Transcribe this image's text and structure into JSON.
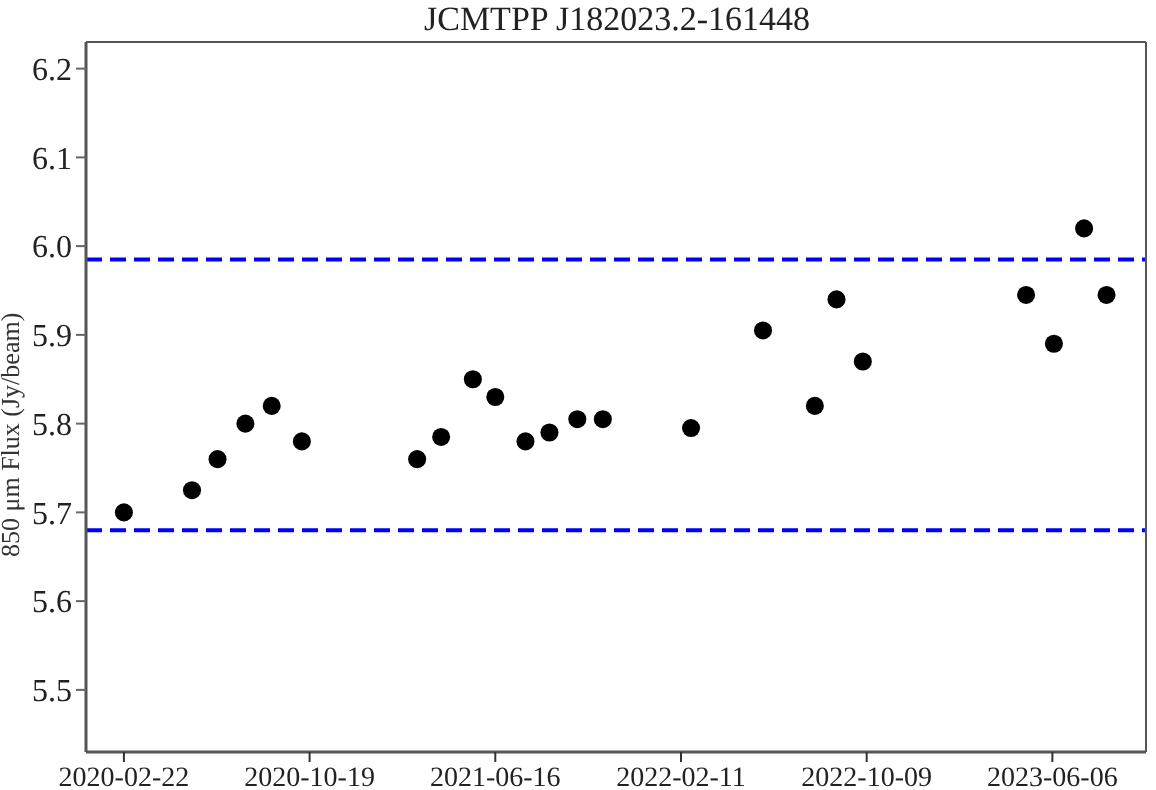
{
  "chart_data": {
    "type": "scatter",
    "title": "JCMTPP J182023.2-161448",
    "ylabel": "850 μm Flux (Jy/beam)",
    "x": [
      "2020-02-22",
      "2020-05-20",
      "2020-06-22",
      "2020-07-28",
      "2020-08-31",
      "2020-10-09",
      "2021-03-07",
      "2021-04-07",
      "2021-05-18",
      "2021-06-16",
      "2021-07-25",
      "2021-08-25",
      "2021-09-30",
      "2021-11-02",
      "2022-02-24",
      "2022-05-28",
      "2022-08-03",
      "2022-08-31",
      "2022-10-04",
      "2023-05-03",
      "2023-06-08",
      "2023-07-17",
      "2023-08-15"
    ],
    "series": [
      {
        "color": "#000000",
        "values": [
          5.7,
          5.725,
          5.76,
          5.8,
          5.82,
          5.78,
          5.76,
          5.785,
          5.85,
          5.83,
          5.78,
          5.79,
          5.805,
          5.805,
          5.795,
          5.905,
          5.82,
          5.94,
          5.87,
          5.945,
          5.89,
          6.02,
          5.945
        ]
      }
    ],
    "xlim": [
      "2020-01-04",
      "2023-10-05"
    ],
    "xticks": [
      "2020-02-22",
      "2020-10-19",
      "2021-06-16",
      "2022-02-11",
      "2022-10-09",
      "2023-06-06"
    ],
    "ylim": [
      5.43,
      6.23
    ],
    "yticks": [
      5.5,
      5.6,
      5.7,
      5.8,
      5.9,
      {
        "value": 6,
        "label": "6.0"
      },
      6.1,
      6.2
    ],
    "ref_lines": [
      {
        "axis": "y",
        "value": 5.985,
        "color": "#0000ff",
        "line_style": "dashed"
      },
      {
        "axis": "y",
        "value": 5.68,
        "color": "#0000ff",
        "line_style": "dashed"
      }
    ],
    "marker": "circle"
  }
}
